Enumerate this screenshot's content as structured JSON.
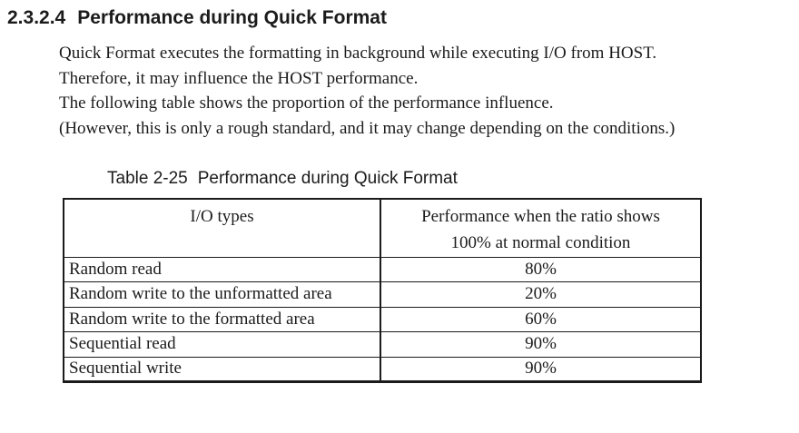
{
  "heading": {
    "number": "2.3.2.4",
    "title": "Performance during Quick Format"
  },
  "paragraph": {
    "lines": [
      "Quick Format executes the formatting in background while executing I/O from HOST.",
      "Therefore, it may influence the HOST performance.",
      "The following table shows the proportion of the performance influence.",
      "(However, this is only a rough standard, and it may change depending on the conditions.)"
    ]
  },
  "table": {
    "caption": {
      "label": "Table 2-25",
      "title": "Performance during Quick Format"
    },
    "header": {
      "io_types": "I/O types",
      "performance_line1": "Performance when the ratio shows",
      "performance_line2": "100% at normal condition"
    },
    "rows": [
      {
        "io_type": "Random read",
        "performance": "80%"
      },
      {
        "io_type": "Random write to the unformatted area",
        "performance": "20%"
      },
      {
        "io_type": "Random write to the formatted area",
        "performance": "60%"
      },
      {
        "io_type": "Sequential read",
        "performance": "90%"
      },
      {
        "io_type": "Sequential write",
        "performance": "90%"
      }
    ]
  },
  "colors": {
    "text": "#1b1b1b",
    "table_border": "#1b1b1b",
    "page_background": "#ffffff"
  }
}
